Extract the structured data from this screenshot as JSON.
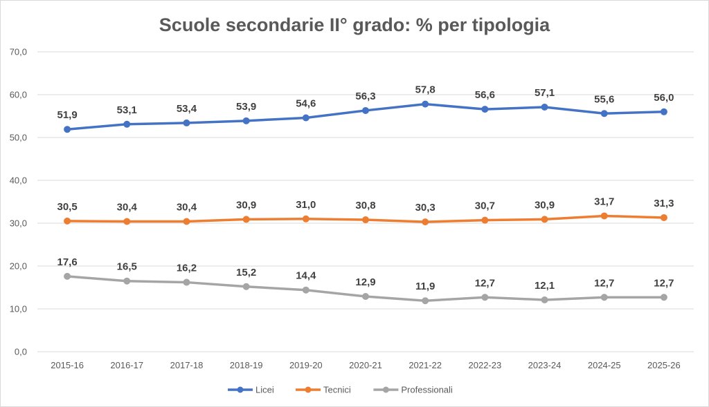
{
  "chart_data": {
    "type": "line",
    "title": "Scuole secondarie II° grado: % per tipologia",
    "xlabel": "",
    "ylabel": "",
    "ylim": [
      0,
      70
    ],
    "yticks": [
      "0,0",
      "10,0",
      "20,0",
      "30,0",
      "40,0",
      "50,0",
      "60,0",
      "70,0"
    ],
    "ytick_values": [
      0,
      10,
      20,
      30,
      40,
      50,
      60,
      70
    ],
    "categories": [
      "2015-16",
      "2016-17",
      "2017-18",
      "2018-19",
      "2019-20",
      "2020-21",
      "2021-22",
      "2022-23",
      "2023-24",
      "2024-25",
      "2025-26"
    ],
    "grid": "horizontal",
    "legend_position": "bottom",
    "series": [
      {
        "name": "Licei",
        "color": "#4472C4",
        "values": [
          51.9,
          53.1,
          53.4,
          53.9,
          54.6,
          56.3,
          57.8,
          56.6,
          57.1,
          55.6,
          56.0
        ],
        "labels": [
          "51,9",
          "53,1",
          "53,4",
          "53,9",
          "54,6",
          "56,3",
          "57,8",
          "56,6",
          "57,1",
          "55,6",
          "56,0"
        ]
      },
      {
        "name": "Tecnici",
        "color": "#ED7D31",
        "values": [
          30.5,
          30.4,
          30.4,
          30.9,
          31.0,
          30.8,
          30.3,
          30.7,
          30.9,
          31.7,
          31.3
        ],
        "labels": [
          "30,5",
          "30,4",
          "30,4",
          "30,9",
          "31,0",
          "30,8",
          "30,3",
          "30,7",
          "30,9",
          "31,7",
          "31,3"
        ]
      },
      {
        "name": "Professionali",
        "color": "#A5A5A5",
        "values": [
          17.6,
          16.5,
          16.2,
          15.2,
          14.4,
          12.9,
          11.9,
          12.7,
          12.1,
          12.7,
          12.7
        ],
        "labels": [
          "17,6",
          "16,5",
          "16,2",
          "15,2",
          "14,4",
          "12,9",
          "11,9",
          "12,7",
          "12,1",
          "12,7",
          "12,7"
        ]
      }
    ]
  }
}
